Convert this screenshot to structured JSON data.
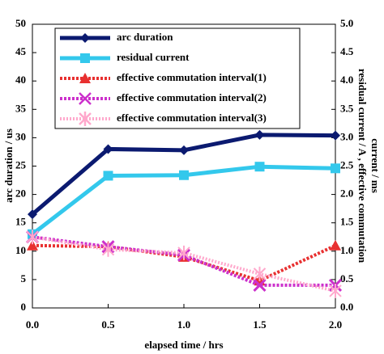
{
  "chart_data": {
    "type": "line",
    "xlabel": "elapsed time / hrs",
    "ylabel": "arc duration / us",
    "y2label": [
      "residual current / A , effective commutation",
      "current / ms"
    ],
    "x": [
      0,
      0.5,
      1,
      1.5,
      2
    ],
    "xlim": [
      0,
      2
    ],
    "xticks": [
      {
        "value": 0,
        "label": "0.0"
      },
      {
        "value": 0.5,
        "label": "0.5"
      },
      {
        "value": 1,
        "label": "1.0"
      },
      {
        "value": 1.5,
        "label": "1.5"
      },
      {
        "value": 2,
        "label": "2.0"
      }
    ],
    "ylim": [
      0,
      50
    ],
    "yticks": [
      0,
      5,
      10,
      15,
      20,
      25,
      30,
      35,
      40,
      45,
      50
    ],
    "y2lim": [
      0,
      5
    ],
    "y2ticks": [
      {
        "value": 0,
        "label": "0.0"
      },
      {
        "value": 0.5,
        "label": "0.5"
      },
      {
        "value": 1,
        "label": "1.0"
      },
      {
        "value": 1.5,
        "label": "1.5"
      },
      {
        "value": 2,
        "label": "2.0"
      },
      {
        "value": 2.5,
        "label": "2.5"
      },
      {
        "value": 3,
        "label": "3.0"
      },
      {
        "value": 3.5,
        "label": "3.5"
      },
      {
        "value": 4,
        "label": "4.0"
      },
      {
        "value": 4.5,
        "label": "4.5"
      },
      {
        "value": 5,
        "label": "5.0"
      }
    ],
    "legend": "upper left",
    "series": [
      {
        "name": "arc duration",
        "color": "#0b1a70",
        "marker": "diamond",
        "values": [
          16.5,
          28,
          27.8,
          30.5,
          30.4
        ]
      },
      {
        "name": "residual current",
        "color": "#33c8ec",
        "marker": "square",
        "axis": "y2",
        "values": [
          1.3,
          2.33,
          2.34,
          2.49,
          2.46
        ]
      },
      {
        "name": "effective commutation interval(1)",
        "color": "#e83030",
        "marker": "triangle",
        "axis": "y2",
        "values": [
          1.1,
          1.08,
          0.9,
          0.48,
          1.1
        ]
      },
      {
        "name": "effective commutation interval(2)",
        "color": "#cc30cc",
        "marker": "x",
        "axis": "y2",
        "values": [
          1.25,
          1.08,
          0.93,
          0.4,
          0.4
        ]
      },
      {
        "name": "effective commutation interval(3)",
        "color": "#ffa8cc",
        "marker": "asterisk",
        "axis": "y2",
        "values": [
          1.25,
          1.03,
          0.97,
          0.6,
          0.3
        ]
      }
    ]
  }
}
